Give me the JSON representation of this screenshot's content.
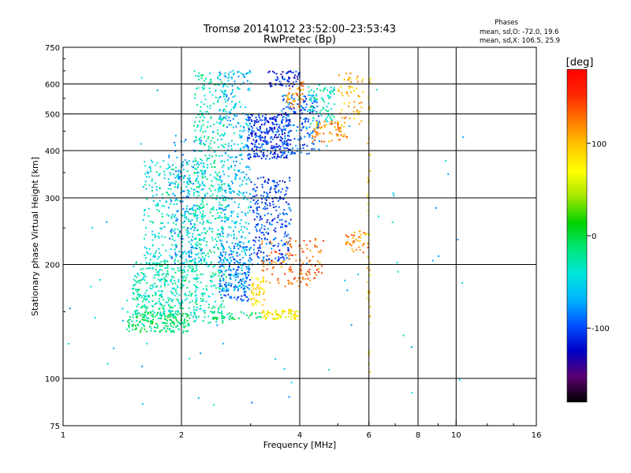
{
  "chart_data": {
    "type": "scatter",
    "title": "Tromsø 20141012 23:52:00–23:53:43",
    "subtitle": "RwPretec (Bp)",
    "xlabel": "Frequency [MHz]",
    "ylabel": "Stationary phase Virtual Height [km]",
    "x_scale": "log",
    "y_scale": "log",
    "xlim": [
      1,
      16
    ],
    "ylim": [
      75,
      750
    ],
    "grid": true,
    "x_ticks": [
      1,
      2,
      4,
      6,
      8,
      10,
      16
    ],
    "x_tick_labels": [
      "1",
      "2",
      "4",
      "6",
      "8",
      "10",
      "16"
    ],
    "x_gridlines": [
      2,
      4,
      6,
      8,
      10
    ],
    "y_ticks": [
      75,
      100,
      200,
      300,
      400,
      500,
      600,
      750
    ],
    "y_tick_labels": [
      "75",
      "100",
      "200",
      "300",
      "400",
      "500",
      "600",
      "750"
    ],
    "y_gridlines": [
      100,
      200,
      300,
      400,
      500,
      600
    ],
    "stats_header": "Phases",
    "stats": [
      "mean, sd,O: -72.0, 19.6",
      "mean, sd,X: 106.5, 25.9"
    ],
    "colorbar": {
      "label": "[deg]",
      "min": -180,
      "max": 180,
      "ticks": [
        100,
        0,
        -100
      ],
      "tick_labels": [
        "100",
        "0",
        "-100"
      ],
      "colormap": [
        "#000000",
        "#5a0070",
        "#0000c8",
        "#0050ff",
        "#00b4ff",
        "#00e6dc",
        "#00e678",
        "#00d200",
        "#a0e600",
        "#ffff00",
        "#ffc800",
        "#ff7800",
        "#ff2800",
        "#ff0000"
      ]
    },
    "series": [
      {
        "f0": 1.45,
        "f1": 2.1,
        "h0": 132,
        "h1": 150,
        "phase": -10,
        "n": 180
      },
      {
        "f0": 1.5,
        "f1": 2.2,
        "h0": 145,
        "h1": 205,
        "phase": -30,
        "n": 380
      },
      {
        "f0": 1.6,
        "f1": 2.3,
        "h0": 200,
        "h1": 380,
        "phase": -40,
        "n": 320
      },
      {
        "f0": 1.85,
        "f1": 2.3,
        "h0": 200,
        "h1": 430,
        "phase": -75,
        "n": 160
      },
      {
        "f0": 2.15,
        "f1": 2.6,
        "h0": 140,
        "h1": 650,
        "phase": -30,
        "n": 460
      },
      {
        "f0": 2.5,
        "f1": 3.0,
        "h0": 170,
        "h1": 650,
        "phase": -60,
        "n": 420
      },
      {
        "f0": 2.5,
        "f1": 3.0,
        "h0": 160,
        "h1": 230,
        "phase": -90,
        "n": 160
      },
      {
        "f0": 3.0,
        "f1": 3.8,
        "h0": 200,
        "h1": 340,
        "phase": -100,
        "n": 260
      },
      {
        "f0": 2.95,
        "f1": 3.8,
        "h0": 380,
        "h1": 500,
        "phase": -108,
        "n": 300
      },
      {
        "f0": 3.6,
        "f1": 4.5,
        "h0": 390,
        "h1": 560,
        "phase": -90,
        "n": 160
      },
      {
        "f0": 4.2,
        "f1": 4.9,
        "h0": 470,
        "h1": 590,
        "phase": -35,
        "n": 80
      },
      {
        "f0": 3.3,
        "f1": 4.0,
        "h0": 590,
        "h1": 650,
        "phase": -112,
        "n": 60
      },
      {
        "f0": 3.7,
        "f1": 4.1,
        "h0": 520,
        "h1": 610,
        "phase": 120,
        "n": 50
      },
      {
        "f0": 4.3,
        "f1": 5.3,
        "h0": 420,
        "h1": 480,
        "phase": 120,
        "n": 70
      },
      {
        "f0": 5.0,
        "f1": 5.8,
        "h0": 470,
        "h1": 640,
        "phase": 105,
        "n": 60
      },
      {
        "f0": 3.2,
        "f1": 4.6,
        "h0": 175,
        "h1": 235,
        "phase": 130,
        "n": 130
      },
      {
        "f0": 5.2,
        "f1": 6.0,
        "h0": 215,
        "h1": 245,
        "phase": 120,
        "n": 45
      },
      {
        "f0": 3.0,
        "f1": 3.25,
        "h0": 155,
        "h1": 185,
        "phase": 85,
        "n": 50
      },
      {
        "f0": 3.2,
        "f1": 4.0,
        "h0": 143,
        "h1": 152,
        "phase": 75,
        "n": 70
      },
      {
        "f0": 2.4,
        "f1": 3.2,
        "h0": 143,
        "h1": 150,
        "phase": -10,
        "n": 35
      },
      {
        "f0": 5.95,
        "f1": 6.05,
        "h0": 100,
        "h1": 650,
        "phase": 90,
        "n": 45
      },
      {
        "f0": 1.0,
        "f1": 10.5,
        "h0": 85,
        "h1": 650,
        "phase": -60,
        "n": 80
      }
    ]
  }
}
